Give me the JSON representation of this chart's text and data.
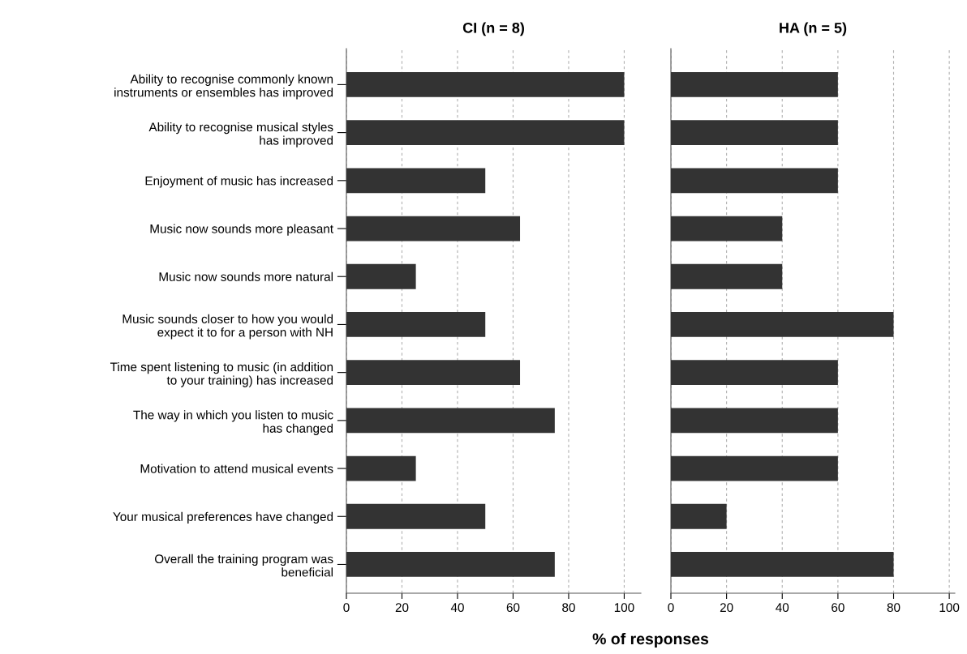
{
  "chart_data": [
    {
      "type": "bar",
      "orientation": "horizontal",
      "title": "CI (n = 8)",
      "xlabel": "% of responses",
      "categories": [
        "Ability to recognise commonly known\ninstruments or ensembles has improved",
        "Ability to recognise musical styles\nhas improved",
        "Enjoyment of music has increased",
        "Music now sounds more pleasant",
        "Music now sounds more natural",
        "Music sounds closer to how you would\nexpect it to for a person with NH",
        "Time spent listening to music (in addition\nto your training) has increased",
        "The way in which you listen to music\nhas changed",
        "Motivation to attend musical events",
        "Your musical preferences have changed",
        "Overall the training program was\nbeneficial"
      ],
      "values": [
        100,
        100,
        50,
        62.5,
        25,
        50,
        62.5,
        75,
        25,
        50,
        75
      ],
      "color": "#333333",
      "xlim": [
        0,
        106
      ],
      "xticks": [
        0,
        20,
        40,
        60,
        80,
        100
      ],
      "grid": "x"
    },
    {
      "type": "bar",
      "orientation": "horizontal",
      "title": "HA (n = 5)",
      "categories": [
        null,
        null,
        null,
        null,
        null,
        null,
        null,
        null,
        null,
        null,
        null
      ],
      "values": [
        60,
        60,
        60,
        40,
        40,
        80,
        60,
        60,
        60,
        20,
        80
      ],
      "color": "#333333",
      "xlim": [
        0,
        102
      ],
      "xticks": [
        0,
        20,
        40,
        60,
        80,
        100
      ],
      "grid": "x",
      "tick_labels": "x"
    }
  ]
}
